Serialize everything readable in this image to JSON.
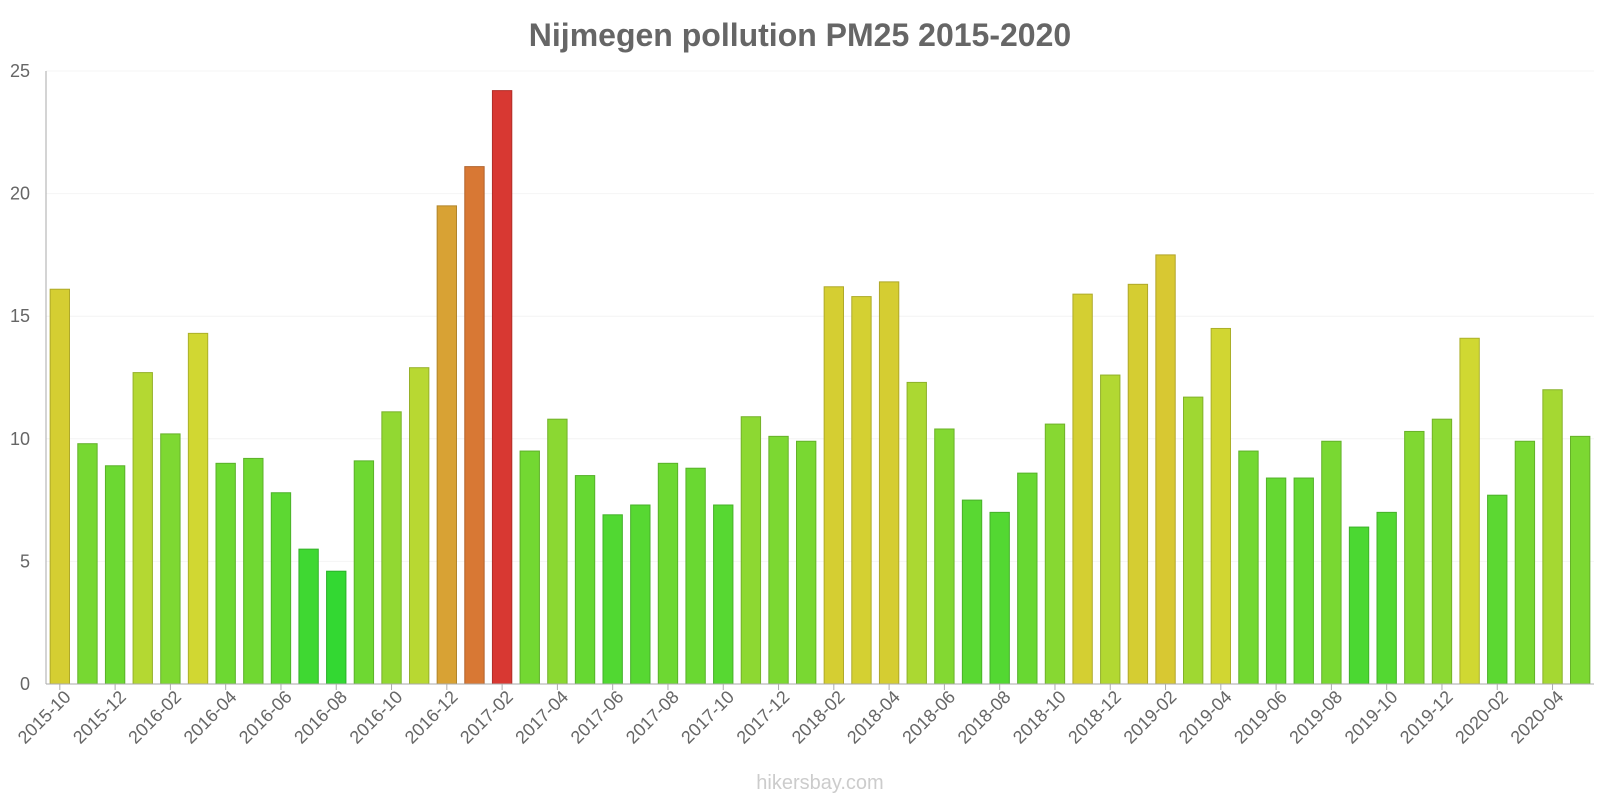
{
  "chart_data": {
    "type": "bar",
    "title": "Nijmegen pollution PM25 2015-2020",
    "xlabel": "",
    "ylabel": "",
    "ylim": [
      0,
      25
    ],
    "yticks": [
      0,
      5,
      10,
      15,
      20,
      25
    ],
    "grid": true,
    "legend": "none",
    "categories": [
      "2015-10",
      "2015-11",
      "2015-12",
      "2016-01",
      "2016-02",
      "2016-03",
      "2016-04",
      "2016-05",
      "2016-06",
      "2016-07",
      "2016-08",
      "2016-09",
      "2016-10",
      "2016-11",
      "2016-12",
      "2017-01",
      "2017-02",
      "2017-03",
      "2017-04",
      "2017-05",
      "2017-06",
      "2017-07",
      "2017-08",
      "2017-09",
      "2017-10",
      "2017-11",
      "2017-12",
      "2018-01",
      "2018-02",
      "2018-03",
      "2018-04",
      "2018-05",
      "2018-06",
      "2018-07",
      "2018-08",
      "2018-09",
      "2018-10",
      "2018-11",
      "2018-12",
      "2019-01",
      "2019-02",
      "2019-03",
      "2019-04",
      "2019-05",
      "2019-06",
      "2019-07",
      "2019-08",
      "2019-09",
      "2019-10",
      "2019-11",
      "2019-12",
      "2020-01",
      "2020-02",
      "2020-03",
      "2020-04",
      "2020-05"
    ],
    "xtick_labels": [
      "2015-10",
      "2015-12",
      "2016-02",
      "2016-04",
      "2016-06",
      "2016-08",
      "2016-10",
      "2016-12",
      "2017-02",
      "2017-04",
      "2017-06",
      "2017-08",
      "2017-10",
      "2017-12",
      "2018-02",
      "2018-04",
      "2018-06",
      "2018-08",
      "2018-10",
      "2018-12",
      "2019-02",
      "2019-04",
      "2019-06",
      "2019-08",
      "2019-10",
      "2019-12",
      "2020-02",
      "2020-04"
    ],
    "values": [
      16.1,
      9.8,
      8.9,
      12.7,
      10.2,
      14.3,
      9.0,
      9.2,
      7.8,
      5.5,
      4.6,
      9.1,
      11.1,
      12.9,
      19.5,
      21.1,
      24.2,
      9.5,
      10.8,
      8.5,
      6.9,
      7.3,
      9.0,
      8.8,
      7.3,
      10.9,
      10.1,
      9.9,
      16.2,
      15.8,
      16.4,
      12.3,
      10.4,
      7.5,
      7.0,
      8.6,
      10.6,
      15.9,
      12.6,
      16.3,
      17.5,
      11.7,
      14.5,
      9.5,
      8.4,
      8.4,
      9.9,
      6.4,
      7.0,
      10.3,
      10.8,
      14.1,
      7.7,
      9.9,
      12.0,
      10.1
    ]
  },
  "footer": {
    "credit": "hikersbay.com"
  }
}
